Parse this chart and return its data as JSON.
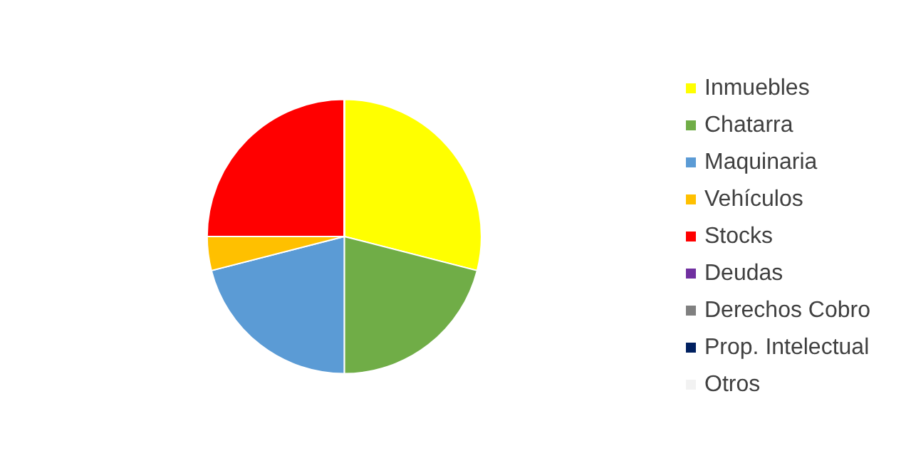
{
  "chart_data": {
    "type": "pie",
    "categories": [
      "Inmuebles",
      "Chatarra",
      "Maquinaria",
      "Vehículos",
      "Stocks",
      "Deudas",
      "Derechos Cobro",
      "Prop. Intelectual",
      "Otros"
    ],
    "values": [
      29,
      21,
      21,
      4,
      25,
      0,
      0,
      0,
      0
    ],
    "colors": [
      "#ffff00",
      "#70ad47",
      "#5b9bd5",
      "#ffc000",
      "#ff0000",
      "#7030a0",
      "#808080",
      "#002060",
      "#f2f2f2"
    ],
    "legend": "right"
  }
}
